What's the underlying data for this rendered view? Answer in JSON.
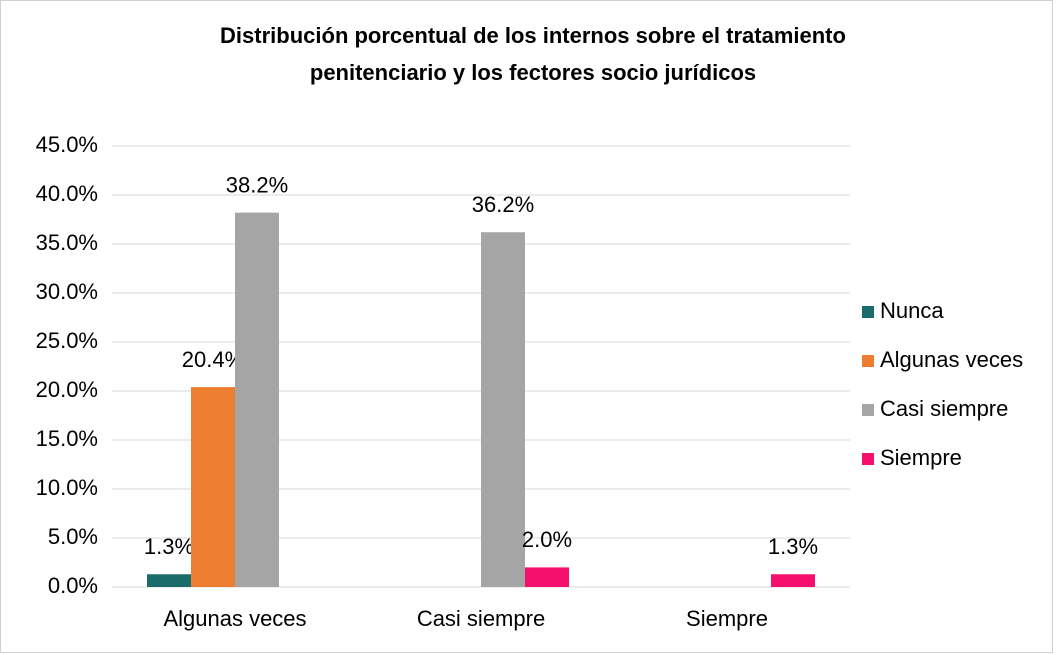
{
  "chart_data": {
    "type": "bar",
    "title": [
      "Distribución porcentual de los internos sobre  el tratamiento",
      "penitenciario y los fectores socio  jurídicos"
    ],
    "categories": [
      "Algunas veces",
      "Casi siempre",
      "Siempre"
    ],
    "series": [
      {
        "name": "Nunca",
        "color": "#1b6b6a",
        "values": [
          1.3,
          null,
          null
        ],
        "value_labels": [
          "1.3%",
          null,
          null
        ]
      },
      {
        "name": "Algunas veces",
        "color": "#ed7d31",
        "values": [
          20.4,
          null,
          null
        ],
        "value_labels": [
          "20.4%",
          null,
          null
        ]
      },
      {
        "name": "Casi siempre",
        "color": "#a5a5a5",
        "values": [
          38.2,
          36.2,
          null
        ],
        "value_labels": [
          "38.2%",
          "36.2%",
          null
        ]
      },
      {
        "name": "Siempre",
        "color": "#f5106e",
        "values": [
          null,
          2.0,
          1.3
        ],
        "value_labels": [
          null,
          "2.0%",
          "1.3%"
        ]
      }
    ],
    "ylim": [
      0,
      45
    ],
    "yticks": [
      {
        "value": 0,
        "label": "0.0%"
      },
      {
        "value": 5,
        "label": "5.0%"
      },
      {
        "value": 10,
        "label": "10.0%"
      },
      {
        "value": 15,
        "label": "15.0%"
      },
      {
        "value": 20,
        "label": "20.0%"
      },
      {
        "value": 25,
        "label": "25.0%"
      },
      {
        "value": 30,
        "label": "30.0%"
      },
      {
        "value": 35,
        "label": "35.0%"
      },
      {
        "value": 40,
        "label": "40.0%"
      },
      {
        "value": 45,
        "label": "45.0%"
      }
    ],
    "grid": true,
    "legend": "right"
  }
}
